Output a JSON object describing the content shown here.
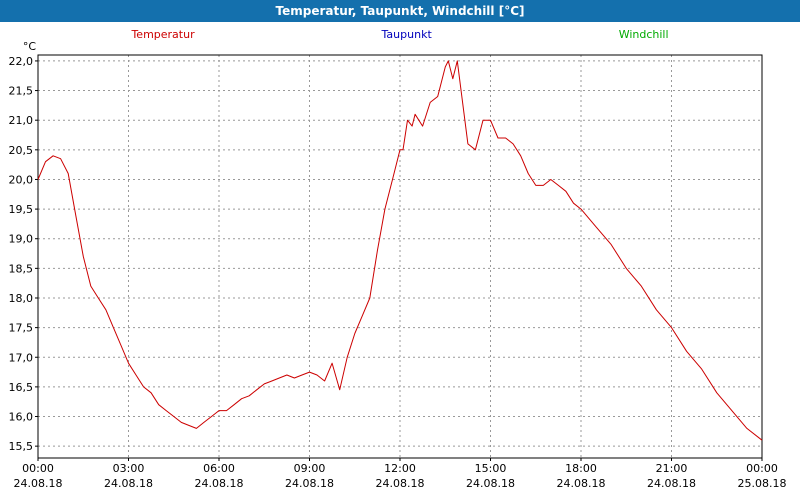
{
  "window": {
    "title": "Temperatur, Taupunkt, Windchill [°C]"
  },
  "colors": {
    "titlebar": "#1470ad",
    "background": "#ffffff",
    "grid": "#999999",
    "plot_border": "#000000",
    "temperatur": "#cc0000",
    "taupunkt": "#0000bb",
    "windchill": "#00aa00"
  },
  "legend": {
    "items": [
      {
        "label": "Temperatur",
        "color": "#cc0000"
      },
      {
        "label": "Taupunkt",
        "color": "#0000bb"
      },
      {
        "label": "Windchill",
        "color": "#00aa00"
      }
    ]
  },
  "chart_data": {
    "type": "line",
    "title": "Temperatur, Taupunkt, Windchill [°C]",
    "y_unit": "°C",
    "xlabel": "",
    "ylabel": "°C",
    "xlim": [
      0,
      24
    ],
    "ylim": [
      15.3,
      22.1
    ],
    "grid": true,
    "legend_position": "top",
    "x_ticks": [
      {
        "hour": 0,
        "time": "00:00",
        "date": "24.08.18"
      },
      {
        "hour": 3,
        "time": "03:00",
        "date": "24.08.18"
      },
      {
        "hour": 6,
        "time": "06:00",
        "date": "24.08.18"
      },
      {
        "hour": 9,
        "time": "09:00",
        "date": "24.08.18"
      },
      {
        "hour": 12,
        "time": "12:00",
        "date": "24.08.18"
      },
      {
        "hour": 15,
        "time": "15:00",
        "date": "24.08.18"
      },
      {
        "hour": 18,
        "time": "18:00",
        "date": "24.08.18"
      },
      {
        "hour": 21,
        "time": "21:00",
        "date": "24.08.18"
      },
      {
        "hour": 24,
        "time": "00:00",
        "date": "25.08.18"
      }
    ],
    "y_ticks": [
      {
        "value": 22.0,
        "label": "22,0"
      },
      {
        "value": 21.5,
        "label": "21,5"
      },
      {
        "value": 21.0,
        "label": "21,0"
      },
      {
        "value": 20.5,
        "label": "20,5"
      },
      {
        "value": 20.0,
        "label": "20,0"
      },
      {
        "value": 19.5,
        "label": "19,5"
      },
      {
        "value": 19.0,
        "label": "19,0"
      },
      {
        "value": 18.5,
        "label": "18,5"
      },
      {
        "value": 18.0,
        "label": "18,0"
      },
      {
        "value": 17.5,
        "label": "17,5"
      },
      {
        "value": 17.0,
        "label": "17,0"
      },
      {
        "value": 16.5,
        "label": "16,5"
      },
      {
        "value": 16.0,
        "label": "16,0"
      },
      {
        "value": 15.5,
        "label": "15,5"
      }
    ],
    "series": [
      {
        "name": "Temperatur",
        "color": "#cc0000",
        "x": [
          0,
          0.25,
          0.5,
          0.75,
          1,
          1.25,
          1.5,
          1.75,
          2,
          2.25,
          2.5,
          2.75,
          3,
          3.25,
          3.5,
          3.75,
          4,
          4.25,
          4.5,
          4.75,
          5,
          5.25,
          5.5,
          5.75,
          6,
          6.25,
          6.5,
          6.75,
          7,
          7.25,
          7.5,
          7.75,
          8,
          8.25,
          8.5,
          8.75,
          9,
          9.25,
          9.5,
          9.75,
          10,
          10.25,
          10.5,
          10.75,
          11,
          11.25,
          11.5,
          11.75,
          12,
          12.1,
          12.25,
          12.4,
          12.5,
          12.75,
          13,
          13.25,
          13.5,
          13.6,
          13.75,
          13.9,
          14,
          14.25,
          14.5,
          14.75,
          15,
          15.25,
          15.5,
          15.75,
          16,
          16.25,
          16.5,
          16.75,
          17,
          17.25,
          17.5,
          17.75,
          18,
          18.5,
          19,
          19.5,
          20,
          20.5,
          21,
          21.5,
          22,
          22.5,
          23,
          23.5,
          24
        ],
        "values": [
          20.0,
          20.3,
          20.4,
          20.35,
          20.1,
          19.4,
          18.7,
          18.2,
          18.0,
          17.8,
          17.5,
          17.2,
          16.9,
          16.7,
          16.5,
          16.4,
          16.2,
          16.1,
          16.0,
          15.9,
          15.85,
          15.8,
          15.9,
          16.0,
          16.1,
          16.1,
          16.2,
          16.3,
          16.35,
          16.45,
          16.55,
          16.6,
          16.65,
          16.7,
          16.65,
          16.7,
          16.75,
          16.7,
          16.6,
          16.9,
          16.45,
          17.0,
          17.4,
          17.7,
          18.0,
          18.8,
          19.5,
          20.0,
          20.5,
          20.5,
          21.0,
          20.9,
          21.1,
          20.9,
          21.3,
          21.4,
          21.9,
          22.0,
          21.7,
          22.0,
          21.6,
          20.6,
          20.5,
          21.0,
          21.0,
          20.7,
          20.7,
          20.6,
          20.4,
          20.1,
          19.9,
          19.9,
          20.0,
          19.9,
          19.8,
          19.6,
          19.5,
          19.2,
          18.9,
          18.5,
          18.2,
          17.8,
          17.5,
          17.1,
          16.8,
          16.4,
          16.1,
          15.8,
          15.6
        ]
      }
    ],
    "notes": "Only the red Temperatur curve is visible in the plot; Taupunkt and Windchill appear in the legend but show no visible data."
  }
}
